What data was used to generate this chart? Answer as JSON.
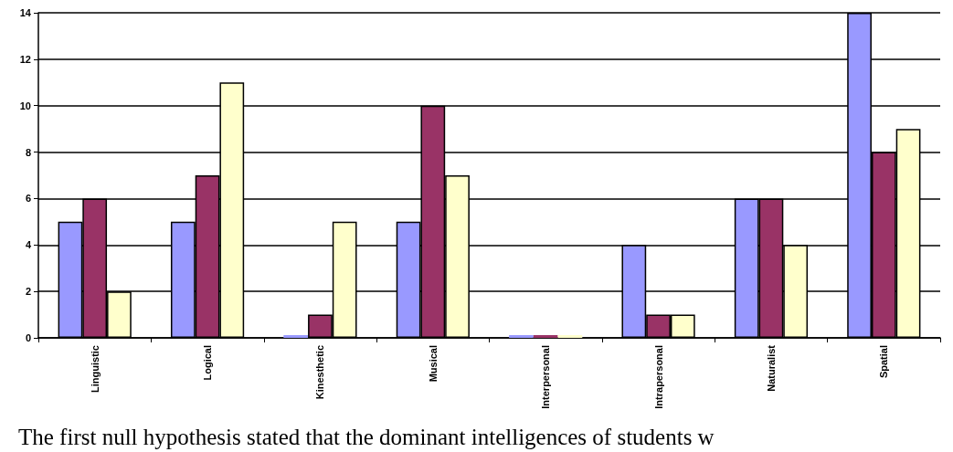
{
  "chart_data": {
    "type": "bar",
    "categories": [
      "Linguistic",
      "Logical",
      "Kinesthetic",
      "Musical",
      "Interpersonal",
      "Intrapersonal",
      "Naturalist",
      "Spatial"
    ],
    "series": [
      {
        "color": "#9999ff",
        "values": [
          5,
          5,
          0,
          5,
          0,
          4,
          6,
          14
        ]
      },
      {
        "color": "#993366",
        "values": [
          6,
          7,
          1,
          10,
          0,
          1,
          6,
          8
        ]
      },
      {
        "color": "#ffffcc",
        "values": [
          2,
          11,
          5,
          7,
          0,
          1,
          4,
          9
        ]
      }
    ],
    "ylim": [
      0,
      14
    ],
    "yticks": [
      0,
      2,
      4,
      6,
      8,
      10,
      12,
      14
    ],
    "grid": "y",
    "annotations": [
      "The first null hypothesis stated that the dominant intelligences of students w"
    ]
  }
}
